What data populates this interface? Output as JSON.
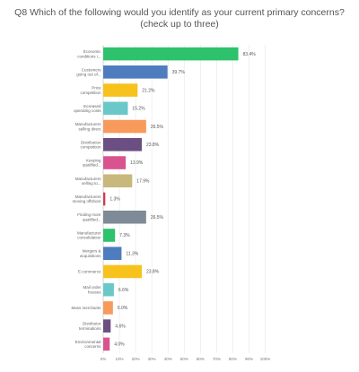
{
  "title": "Q8 Which of the following would you identify as your current primary concerns? (check up to three)",
  "chart_data": {
    "type": "bar",
    "orientation": "horizontal",
    "title": "Q8 Which of the following would you identify as your current primary concerns? (check up to three)",
    "categories": [
      [
        "Economic",
        "conditions i..."
      ],
      [
        "Customers",
        "going out of..."
      ],
      [
        "Price",
        "competition"
      ],
      [
        "Increased",
        "operating costs"
      ],
      [
        "Manufacturers",
        "selling direct"
      ],
      [
        "Distribution",
        "competition"
      ],
      [
        "Keeping",
        "qualified..."
      ],
      [
        "Manufacturers",
        "selling to..."
      ],
      [
        "Manufacturers",
        "moving offshore"
      ],
      [
        "Finding more",
        "qualified..."
      ],
      [
        "Manufacturer",
        "consolidation"
      ],
      [
        "Mergers &",
        "acquisitions"
      ],
      [
        "E-commerce"
      ],
      [
        "Mail order",
        "houses"
      ],
      [
        "Mass merchants"
      ],
      [
        "Distributor",
        "terminations"
      ],
      [
        "Environmental",
        "concerns"
      ]
    ],
    "values": [
      83.4,
      39.7,
      21.2,
      15.2,
      26.5,
      23.8,
      13.9,
      17.9,
      1.3,
      26.5,
      7.3,
      11.3,
      23.8,
      6.6,
      6.0,
      4.6,
      4.0
    ],
    "value_labels": [
      "83.4%",
      "39.7%",
      "21.2%",
      "15.2%",
      "26.5%",
      "23.8%",
      "13.9%",
      "17.9%",
      "1.3%",
      "26.5%",
      "7.3%",
      "11.3%",
      "23.8%",
      "6.6%",
      "6.0%",
      "4.6%",
      "4.0%"
    ],
    "colors": [
      "#2dc26b",
      "#4f7bbf",
      "#f6c21b",
      "#6ac8c8",
      "#f79a5b",
      "#6b4e82",
      "#d9548e",
      "#c8b87b",
      "#d23c4f",
      "#7e8a96",
      "#2dc26b",
      "#4f7bbf",
      "#f6c21b",
      "#6ac8c8",
      "#f79a5b",
      "#6b4e82",
      "#d9548e"
    ],
    "xlim": [
      0,
      100
    ],
    "x_ticks": [
      "0%",
      "10%",
      "20%",
      "30%",
      "40%",
      "50%",
      "60%",
      "70%",
      "80%",
      "90%",
      "100%"
    ],
    "grid": true,
    "legend": "none"
  }
}
